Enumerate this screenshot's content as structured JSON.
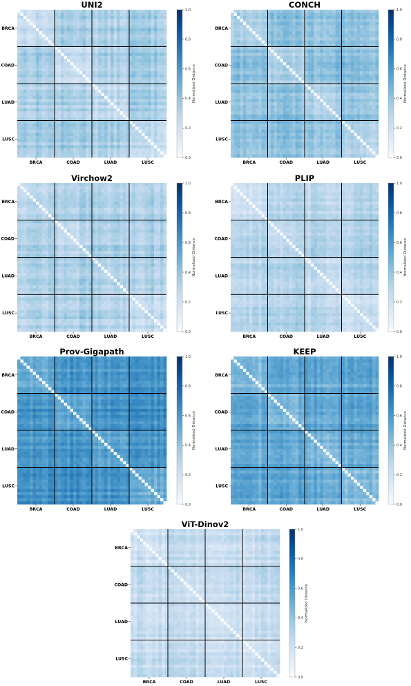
{
  "colorbar": {
    "label": "Normalized Distance",
    "ticks": [
      "0.0",
      "0.2",
      "0.4",
      "0.6",
      "0.8",
      "1.0"
    ],
    "color_low": "#f7fbff",
    "color_high": "#08306b"
  },
  "chart_data": [
    {
      "type": "heatmap",
      "title": "UNI2",
      "categories": [
        "BRCA",
        "COAD",
        "LUAD",
        "LUSC"
      ],
      "vmin": 0.0,
      "vmax": 1.0,
      "block_values": [
        [
          0.25,
          0.35,
          0.33,
          0.36
        ],
        [
          0.35,
          0.24,
          0.32,
          0.36
        ],
        [
          0.33,
          0.32,
          0.26,
          0.34
        ],
        [
          0.36,
          0.36,
          0.34,
          0.25
        ]
      ],
      "xlabel": "",
      "ylabel": ""
    },
    {
      "type": "heatmap",
      "title": "CONCH",
      "categories": [
        "BRCA",
        "COAD",
        "LUAD",
        "LUSC"
      ],
      "vmin": 0.0,
      "vmax": 1.0,
      "block_values": [
        [
          0.32,
          0.42,
          0.4,
          0.41
        ],
        [
          0.42,
          0.33,
          0.42,
          0.43
        ],
        [
          0.4,
          0.42,
          0.33,
          0.4
        ],
        [
          0.41,
          0.43,
          0.4,
          0.33
        ]
      ],
      "xlabel": "",
      "ylabel": ""
    },
    {
      "type": "heatmap",
      "title": "Virchow2",
      "categories": [
        "BRCA",
        "COAD",
        "LUAD",
        "LUSC"
      ],
      "vmin": 0.0,
      "vmax": 1.0,
      "block_values": [
        [
          0.3,
          0.34,
          0.32,
          0.33
        ],
        [
          0.34,
          0.29,
          0.33,
          0.34
        ],
        [
          0.32,
          0.33,
          0.3,
          0.31
        ],
        [
          0.33,
          0.34,
          0.31,
          0.27
        ]
      ],
      "xlabel": "",
      "ylabel": ""
    },
    {
      "type": "heatmap",
      "title": "PLIP",
      "categories": [
        "BRCA",
        "COAD",
        "LUAD",
        "LUSC"
      ],
      "vmin": 0.0,
      "vmax": 1.0,
      "block_values": [
        [
          0.22,
          0.3,
          0.28,
          0.3
        ],
        [
          0.3,
          0.25,
          0.3,
          0.31
        ],
        [
          0.28,
          0.3,
          0.24,
          0.28
        ],
        [
          0.3,
          0.31,
          0.28,
          0.22
        ]
      ],
      "xlabel": "",
      "ylabel": ""
    },
    {
      "type": "heatmap",
      "title": "Prov-Gigapath",
      "categories": [
        "BRCA",
        "COAD",
        "LUAD",
        "LUSC"
      ],
      "vmin": 0.0,
      "vmax": 1.0,
      "block_values": [
        [
          0.52,
          0.62,
          0.6,
          0.62
        ],
        [
          0.62,
          0.55,
          0.62,
          0.64
        ],
        [
          0.6,
          0.62,
          0.54,
          0.6
        ],
        [
          0.62,
          0.64,
          0.6,
          0.5
        ]
      ],
      "xlabel": "",
      "ylabel": ""
    },
    {
      "type": "heatmap",
      "title": "KEEP",
      "categories": [
        "BRCA",
        "COAD",
        "LUAD",
        "LUSC"
      ],
      "vmin": 0.0,
      "vmax": 1.0,
      "block_values": [
        [
          0.42,
          0.52,
          0.52,
          0.53
        ],
        [
          0.52,
          0.47,
          0.54,
          0.55
        ],
        [
          0.52,
          0.54,
          0.48,
          0.52
        ],
        [
          0.53,
          0.55,
          0.52,
          0.45
        ]
      ],
      "xlabel": "",
      "ylabel": ""
    },
    {
      "type": "heatmap",
      "title": "ViT-Dinov2",
      "categories": [
        "BRCA",
        "COAD",
        "LUAD",
        "LUSC"
      ],
      "vmin": 0.0,
      "vmax": 1.0,
      "block_values": [
        [
          0.2,
          0.24,
          0.23,
          0.24
        ],
        [
          0.24,
          0.21,
          0.24,
          0.25
        ],
        [
          0.23,
          0.24,
          0.22,
          0.23
        ],
        [
          0.24,
          0.25,
          0.23,
          0.2
        ]
      ],
      "xlabel": "",
      "ylabel": ""
    }
  ]
}
